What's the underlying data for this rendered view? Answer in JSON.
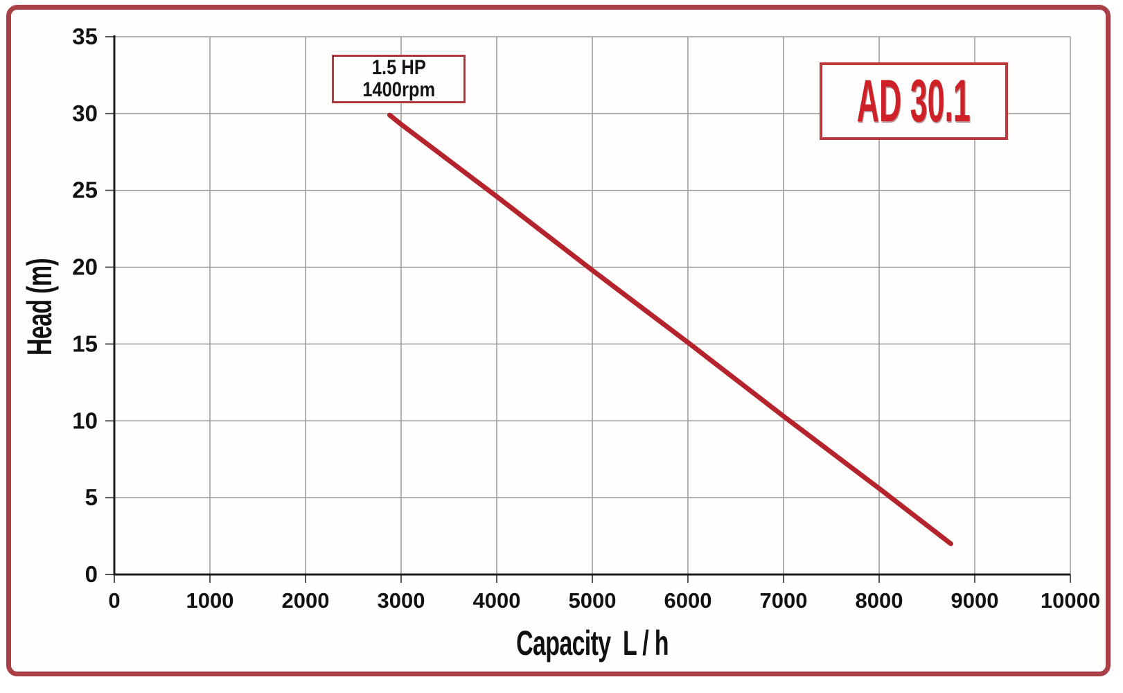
{
  "chart_data": {
    "type": "line",
    "title": "",
    "model_label": "AD 30.1",
    "xlabel": "Capacity  L / h",
    "ylabel": "Head (m)",
    "xlim": [
      0,
      10000
    ],
    "ylim": [
      0,
      35
    ],
    "x_ticks": [
      0,
      1000,
      2000,
      3000,
      4000,
      5000,
      6000,
      7000,
      8000,
      9000,
      10000
    ],
    "y_ticks": [
      0,
      5,
      10,
      15,
      20,
      25,
      30,
      35
    ],
    "grid": true,
    "legend": "none",
    "series": [
      {
        "name": "AD 30.1 pump curve (1.5 HP, 1400rpm)",
        "points": [
          [
            2880,
            29.9
          ],
          [
            3000,
            29.3
          ],
          [
            4000,
            24.6
          ],
          [
            5000,
            19.8
          ],
          [
            6000,
            15.1
          ],
          [
            7000,
            10.3
          ],
          [
            8000,
            5.6
          ],
          [
            8750,
            2.0
          ]
        ],
        "color": "#b5242d"
      }
    ],
    "annotation": {
      "lines": [
        "1.5 HP",
        "1400rpm"
      ],
      "anchor_x": 2900,
      "anchor_y": 32
    },
    "colors": {
      "curve": "#b5242d",
      "frame_border": "#a84046",
      "annotation_border": "#b5353c",
      "model_border": "#bd393b",
      "model_text": "#ce2127",
      "grid": "#979797",
      "tick": "#555555",
      "axis": "#1c1c1c",
      "text": "#111111"
    }
  }
}
